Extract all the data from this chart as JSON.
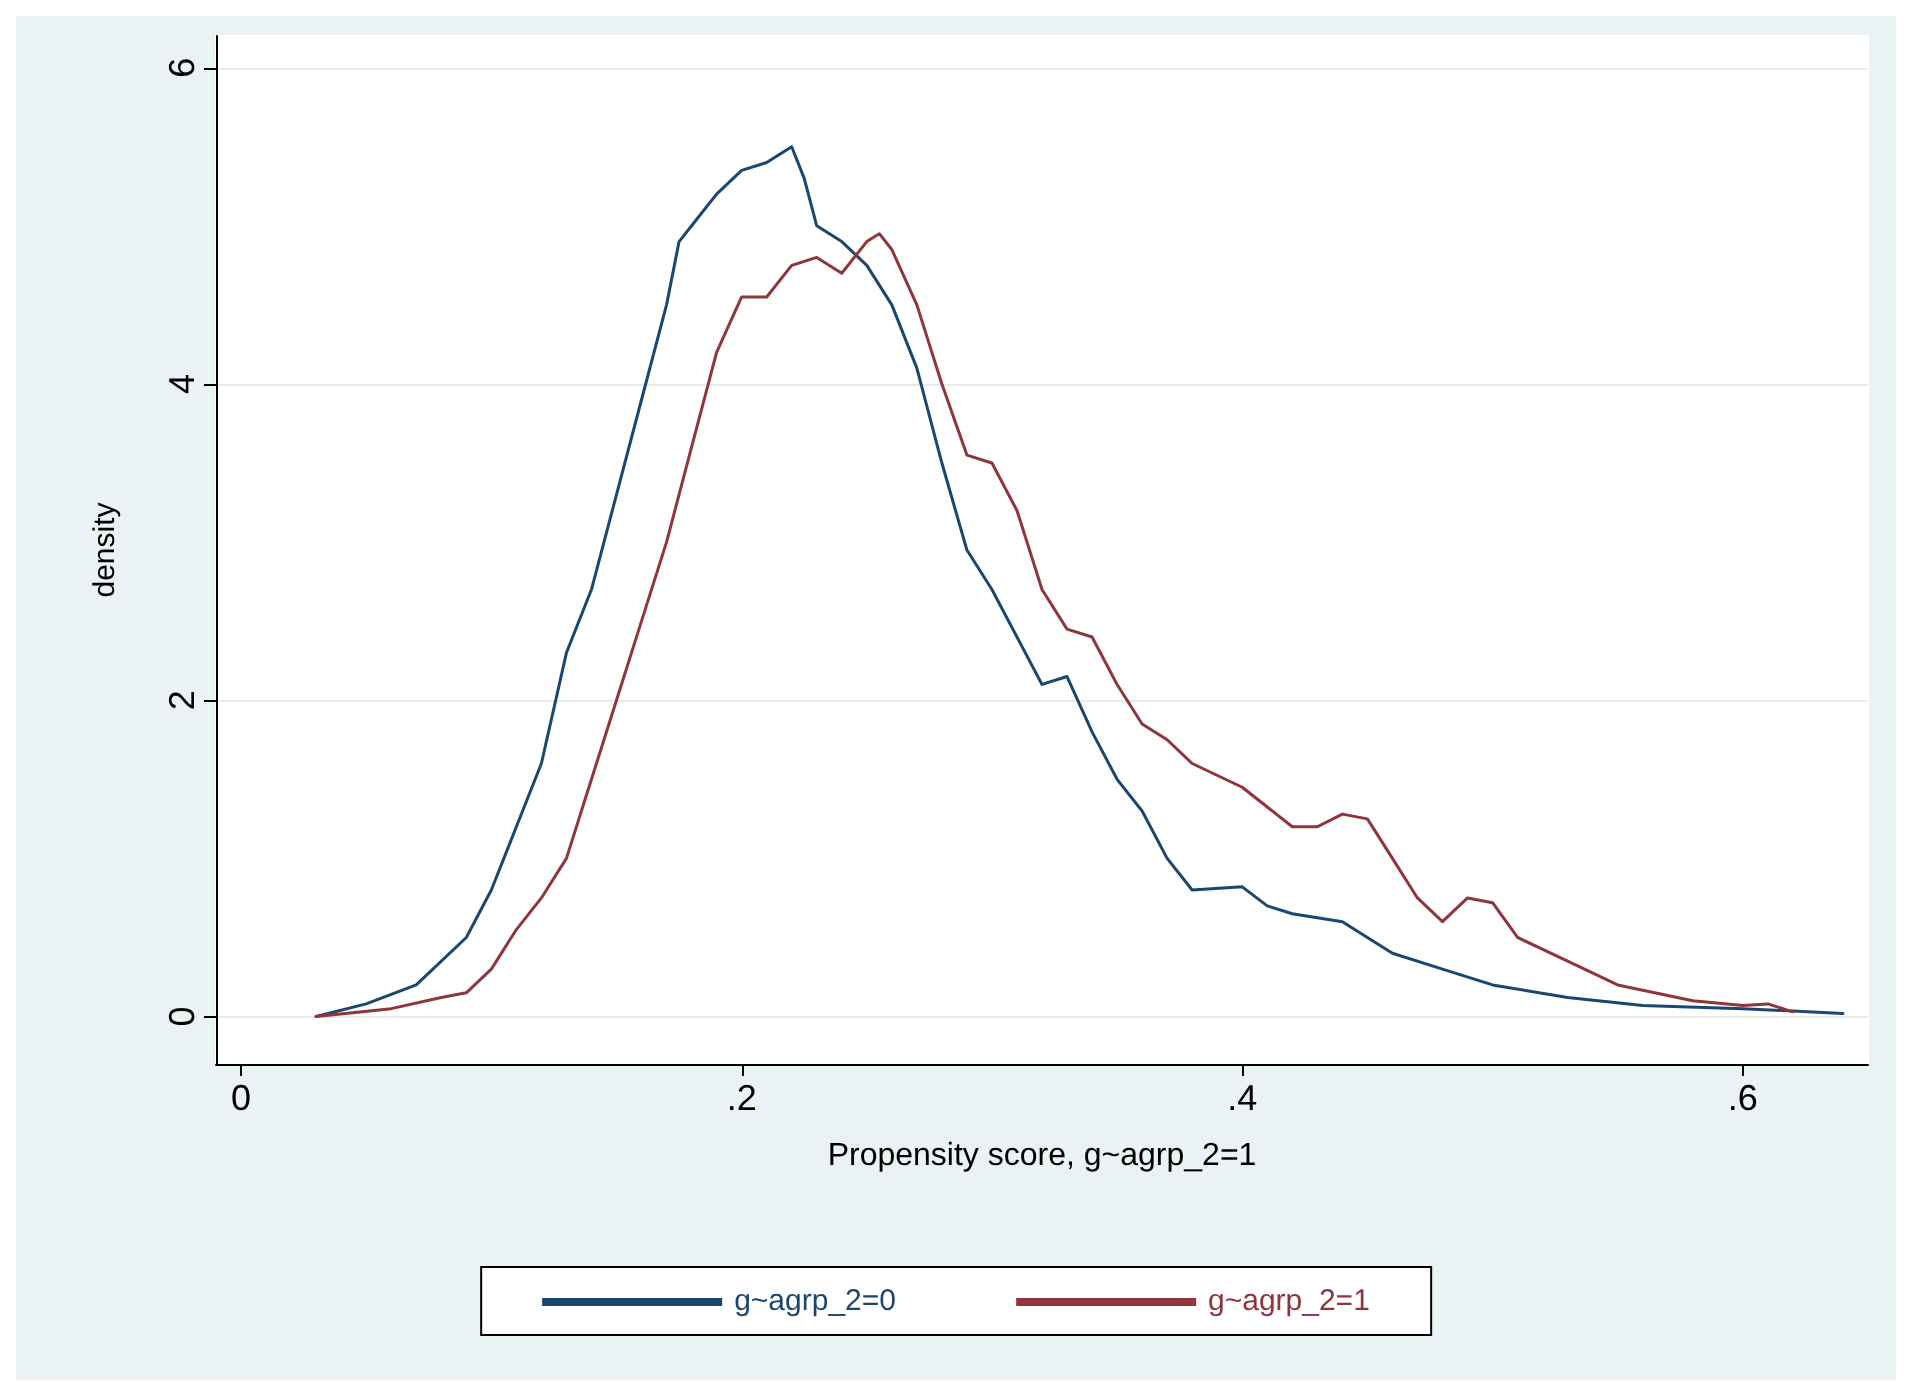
{
  "chart_data": {
    "type": "line",
    "xlabel": "Propensity score, g~agrp_2=1",
    "ylabel": "density",
    "xlim": [
      -0.01,
      0.65
    ],
    "ylim": [
      -0.3,
      6.2
    ],
    "xticks": [
      0,
      {
        "value": 0.2,
        "label": ".2"
      },
      {
        "value": 0.4,
        "label": ".4"
      },
      {
        "value": 0.6,
        "label": ".6"
      }
    ],
    "yticks": [
      0,
      2,
      4,
      6
    ],
    "grid": "y",
    "legend": "bottom",
    "marker": "none",
    "line_style": "solid",
    "series": [
      {
        "name": "g~agrp_2=0",
        "color": "#1a476f",
        "x": [
          0.03,
          0.05,
          0.07,
          0.09,
          0.1,
          0.11,
          0.12,
          0.13,
          0.14,
          0.15,
          0.16,
          0.17,
          0.175,
          0.18,
          0.19,
          0.2,
          0.21,
          0.22,
          0.225,
          0.23,
          0.24,
          0.25,
          0.26,
          0.27,
          0.28,
          0.29,
          0.3,
          0.31,
          0.32,
          0.33,
          0.34,
          0.35,
          0.36,
          0.37,
          0.38,
          0.4,
          0.41,
          0.42,
          0.44,
          0.46,
          0.48,
          0.5,
          0.53,
          0.56,
          0.6,
          0.64
        ],
        "values": [
          0,
          0.08,
          0.2,
          0.5,
          0.8,
          1.2,
          1.6,
          2.3,
          2.7,
          3.3,
          3.9,
          4.5,
          4.9,
          5,
          5.2,
          5.35,
          5.4,
          5.5,
          5.3,
          5,
          4.9,
          4.75,
          4.5,
          4.1,
          3.5,
          2.95,
          2.7,
          2.4,
          2.1,
          2.15,
          1.8,
          1.5,
          1.3,
          1,
          0.8,
          0.82,
          0.7,
          0.65,
          0.6,
          0.4,
          0.3,
          0.2,
          0.12,
          0.07,
          0.05,
          0.02
        ]
      },
      {
        "name": "g~agrp_2=1",
        "color": "#90353b",
        "x": [
          0.03,
          0.06,
          0.08,
          0.09,
          0.1,
          0.11,
          0.12,
          0.13,
          0.14,
          0.15,
          0.16,
          0.17,
          0.18,
          0.19,
          0.2,
          0.21,
          0.22,
          0.23,
          0.24,
          0.25,
          0.255,
          0.26,
          0.27,
          0.28,
          0.29,
          0.3,
          0.31,
          0.32,
          0.33,
          0.34,
          0.35,
          0.36,
          0.37,
          0.38,
          0.4,
          0.42,
          0.43,
          0.44,
          0.45,
          0.46,
          0.47,
          0.48,
          0.49,
          0.5,
          0.51,
          0.53,
          0.55,
          0.58,
          0.6,
          0.61,
          0.62
        ],
        "values": [
          0,
          0.05,
          0.12,
          0.15,
          0.3,
          0.55,
          0.75,
          1,
          1.5,
          2,
          2.5,
          3,
          3.6,
          4.2,
          4.55,
          4.55,
          4.75,
          4.8,
          4.7,
          4.9,
          4.95,
          4.85,
          4.5,
          4,
          3.55,
          3.5,
          3.2,
          2.7,
          2.45,
          2.4,
          2.1,
          1.85,
          1.75,
          1.6,
          1.45,
          1.2,
          1.2,
          1.28,
          1.25,
          1,
          0.75,
          0.6,
          0.75,
          0.72,
          0.5,
          0.35,
          0.2,
          0.1,
          0.07,
          0.08,
          0.03
        ]
      }
    ]
  }
}
